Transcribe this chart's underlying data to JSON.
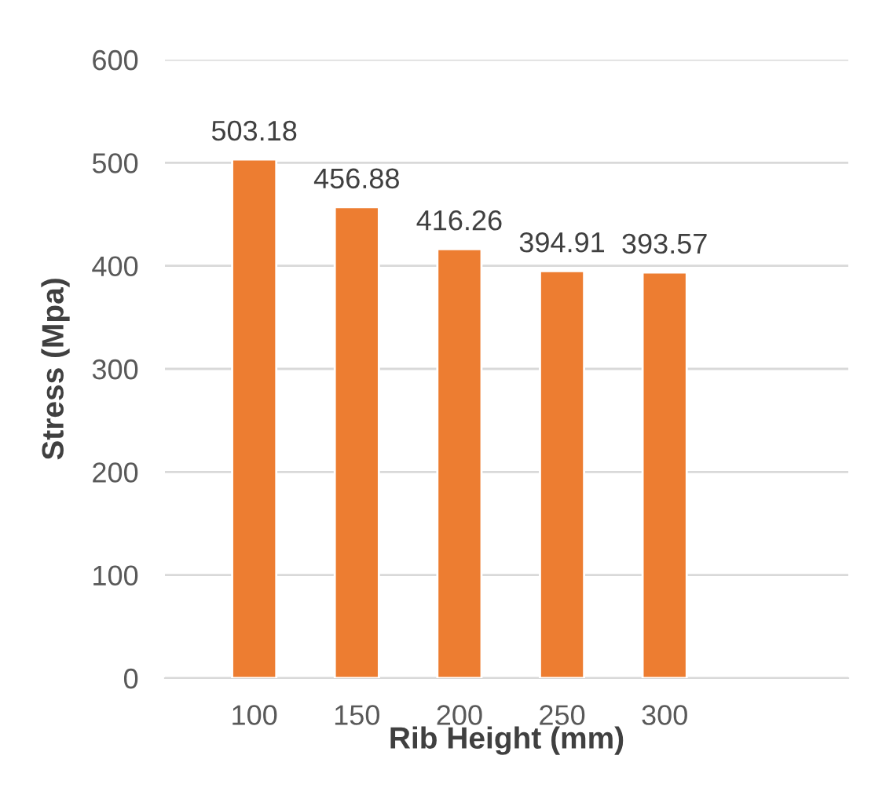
{
  "chart_data": {
    "type": "bar",
    "xlabel": "Rib Height (mm)",
    "ylabel": "Stress (Mpa)",
    "categories": [
      "100",
      "150",
      "200",
      "250",
      "300"
    ],
    "values": [
      503.18,
      456.88,
      416.26,
      394.91,
      393.57
    ],
    "color": "#ed7d31",
    "ylim": [
      0,
      600
    ],
    "yticks": [
      0,
      100,
      200,
      300,
      400,
      500,
      600
    ],
    "grid": "y",
    "data_labels": true
  }
}
